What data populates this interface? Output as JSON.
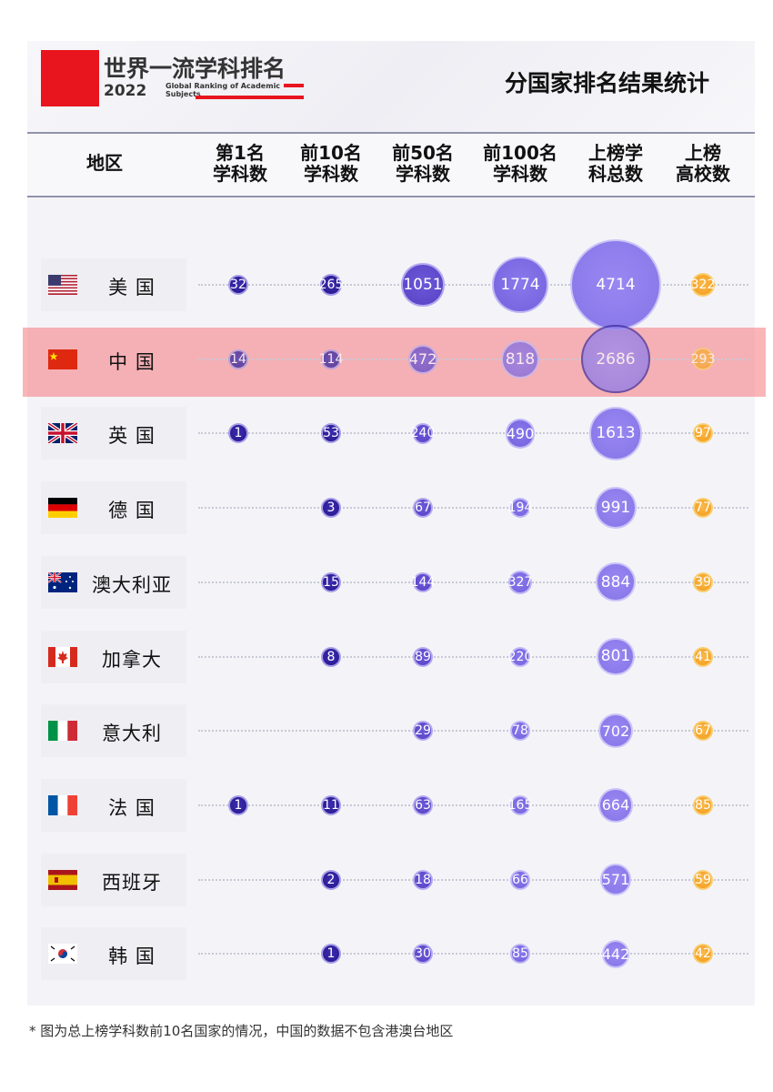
{
  "header": {
    "logo_title": "世界一流学科排名",
    "logo_year": "2022",
    "logo_subtitle": "Global Ranking of Academic Subjects",
    "page_subtitle": "分国家排名结果统计"
  },
  "colors": {
    "brand_red": "#e8141e",
    "bubble_blue_dark": "#2b1d9a",
    "bubble_purple": "#7c6ae6",
    "bubble_orange": "#f5a623",
    "highlight": "#f5787d"
  },
  "footnote": "* 图为总上榜学科数前10名国家的情况，中国的数据不包含港澳台地区",
  "chart_data": {
    "type": "table",
    "columns": [
      "地区",
      "第1名\n学科数",
      "前10名\n学科数",
      "前50名\n学科数",
      "前100名\n学科数",
      "上榜学\n科总数",
      "上榜\n高校数"
    ],
    "highlight_row": "中 国",
    "rows": [
      {
        "region": "美 国",
        "flag": "us-flag-icon",
        "values": [
          32,
          265,
          1051,
          1774,
          4714,
          322
        ]
      },
      {
        "region": "中 国",
        "flag": "china-flag-icon",
        "values": [
          14,
          114,
          472,
          818,
          2686,
          293
        ]
      },
      {
        "region": "英 国",
        "flag": "uk-flag-icon",
        "values": [
          1,
          53,
          240,
          490,
          1613,
          97
        ]
      },
      {
        "region": "德 国",
        "flag": "germany-flag-icon",
        "values": [
          null,
          3,
          67,
          194,
          991,
          77
        ]
      },
      {
        "region": "澳大利亚",
        "flag": "australia-flag-icon",
        "values": [
          null,
          15,
          144,
          327,
          884,
          39
        ]
      },
      {
        "region": "加拿大",
        "flag": "canada-flag-icon",
        "values": [
          null,
          8,
          89,
          220,
          801,
          41
        ]
      },
      {
        "region": "意大利",
        "flag": "italy-flag-icon",
        "values": [
          null,
          null,
          29,
          78,
          702,
          67
        ]
      },
      {
        "region": "法 国",
        "flag": "france-flag-icon",
        "values": [
          1,
          11,
          63,
          165,
          664,
          85
        ]
      },
      {
        "region": "西班牙",
        "flag": "spain-flag-icon",
        "values": [
          null,
          2,
          18,
          66,
          571,
          59
        ]
      },
      {
        "region": "韩 国",
        "flag": "korea-flag-icon",
        "values": [
          null,
          1,
          30,
          85,
          442,
          42
        ]
      }
    ]
  }
}
